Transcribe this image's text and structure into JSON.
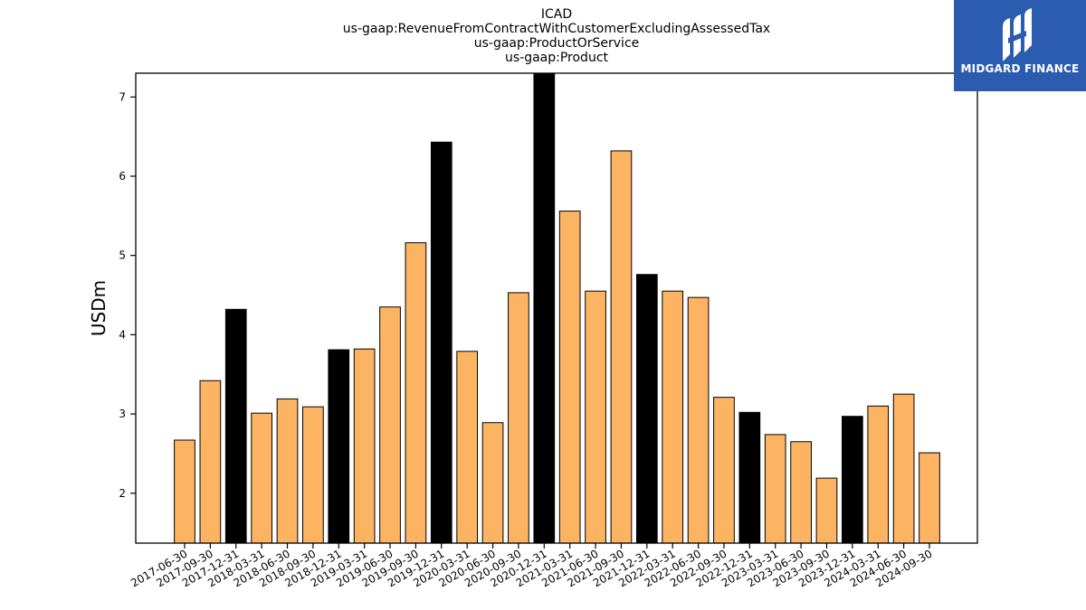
{
  "chart_data": {
    "type": "bar",
    "title_lines": [
      "ICAD",
      "us-gaap:RevenueFromContractWithCustomerExcludingAssessedTax",
      "us-gaap:ProductOrService",
      "us-gaap:Product"
    ],
    "ylabel": "USDm",
    "xlabel": "",
    "ylim": [
      1.37,
      7.3
    ],
    "yticks": [
      2,
      3,
      4,
      5,
      6,
      7
    ],
    "grid": false,
    "legend": "none",
    "colors": {
      "quarter": "#fdb462",
      "year_end": "#000000",
      "edge": "#000000"
    },
    "categories": [
      "2017-06-30",
      "2017-09-30",
      "2017-12-31",
      "2018-03-31",
      "2018-06-30",
      "2018-09-30",
      "2018-12-31",
      "2019-03-31",
      "2019-06-30",
      "2019-09-30",
      "2019-12-31",
      "2020-03-31",
      "2020-06-30",
      "2020-09-30",
      "2020-12-31",
      "2021-03-31",
      "2021-06-30",
      "2021-09-30",
      "2021-12-31",
      "2022-03-31",
      "2022-06-30",
      "2022-09-30",
      "2022-12-31",
      "2023-03-31",
      "2023-06-30",
      "2023-09-30",
      "2023-12-31",
      "2024-03-31",
      "2024-06-30",
      "2024-09-30"
    ],
    "values": [
      2.67,
      3.42,
      4.32,
      3.01,
      3.19,
      3.09,
      3.81,
      3.82,
      4.35,
      5.16,
      6.43,
      3.79,
      2.89,
      4.53,
      7.32,
      5.56,
      4.55,
      6.32,
      4.76,
      4.55,
      4.47,
      3.21,
      3.02,
      2.74,
      2.65,
      2.19,
      2.97,
      3.1,
      3.25,
      2.51
    ],
    "highlight": [
      false,
      false,
      true,
      false,
      false,
      false,
      true,
      false,
      false,
      false,
      true,
      false,
      false,
      false,
      true,
      false,
      false,
      false,
      true,
      false,
      false,
      false,
      true,
      false,
      false,
      false,
      true,
      false,
      false,
      false
    ]
  },
  "logo": {
    "text": "MIDGARD FINANCE"
  }
}
